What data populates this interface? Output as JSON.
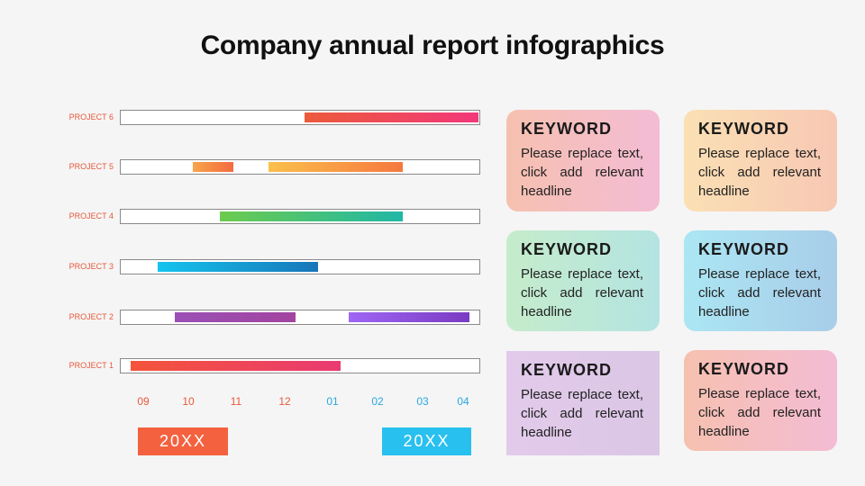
{
  "title": "Company annual report infographics",
  "chart_data": {
    "type": "gantt",
    "axis_ticks": [
      {
        "label": "09",
        "pos": 0.5,
        "color": "#e8593a"
      },
      {
        "label": "10",
        "pos": 1.5,
        "color": "#e8593a"
      },
      {
        "label": "11",
        "pos": 2.5,
        "color": "#e8593a"
      },
      {
        "label": "12",
        "pos": 3.5,
        "color": "#e8593a"
      },
      {
        "label": "01",
        "pos": 4.5,
        "color": "#2aa8e0"
      },
      {
        "label": "02",
        "pos": 5.5,
        "color": "#2aa8e0"
      },
      {
        "label": "03",
        "pos": 6.5,
        "color": "#2aa8e0"
      },
      {
        "label": "04",
        "pos": 7.5,
        "color": "#2aa8e0"
      }
    ],
    "range": [
      0,
      8
    ],
    "projects": [
      {
        "label": "PROJECT 6",
        "bars": [
          {
            "start": 4.1,
            "end": 8.0,
            "from": "#ec5a3c",
            "to": "#f2387a"
          }
        ]
      },
      {
        "label": "PROJECT 5",
        "bars": [
          {
            "start": 1.6,
            "end": 2.5,
            "from": "#f7a54a",
            "to": "#f46a3f"
          },
          {
            "start": 3.3,
            "end": 6.3,
            "from": "#fbc04c",
            "to": "#f5783f"
          }
        ]
      },
      {
        "label": "PROJECT 4",
        "bars": [
          {
            "start": 2.2,
            "end": 6.3,
            "from": "#6ccb4e",
            "to": "#20b7a6"
          }
        ]
      },
      {
        "label": "PROJECT 3",
        "bars": [
          {
            "start": 0.8,
            "end": 4.4,
            "from": "#14c4ee",
            "to": "#1775b8"
          }
        ]
      },
      {
        "label": "PROJECT 2",
        "bars": [
          {
            "start": 1.2,
            "end": 3.9,
            "from": "#9b4fb6",
            "to": "#a2449f"
          },
          {
            "start": 5.1,
            "end": 7.8,
            "from": "#9e66f4",
            "to": "#7a3ac2"
          }
        ]
      },
      {
        "label": "PROJECT 1",
        "bars": [
          {
            "start": 0.2,
            "end": 4.9,
            "from": "#f4543a",
            "to": "#e93a72"
          }
        ]
      }
    ],
    "years": [
      {
        "label": "20XX",
        "color": "#f4613f"
      },
      {
        "label": "20XX",
        "color": "#28c0ef"
      }
    ]
  },
  "cards": [
    {
      "keyword": "KEYWORD",
      "text": "Please replace text, click add relevant headline",
      "from": "#f6c0b0",
      "to": "#f4bcd4"
    },
    {
      "keyword": "KEYWORD",
      "text": "Please replace text, click add relevant headline",
      "from": "#fbe0b4",
      "to": "#f7c8b4"
    },
    {
      "keyword": "KEYWORD",
      "text": "Please replace text, click add relevant headline",
      "from": "#c5eccb",
      "to": "#b4e4e2"
    },
    {
      "keyword": "KEYWORD",
      "text": "Please replace text, click add relevant headline",
      "from": "#abe6f3",
      "to": "#a8cde9"
    },
    {
      "keyword": "KEYWORD",
      "text": "Please replace text, click add relevant headline",
      "from": "#e2caea",
      "to": "#dbc6e6"
    },
    {
      "keyword": "KEYWORD",
      "text": "Please replace text, click add relevant headline",
      "from": "#f6c0b0",
      "to": "#f4bcd4"
    }
  ]
}
